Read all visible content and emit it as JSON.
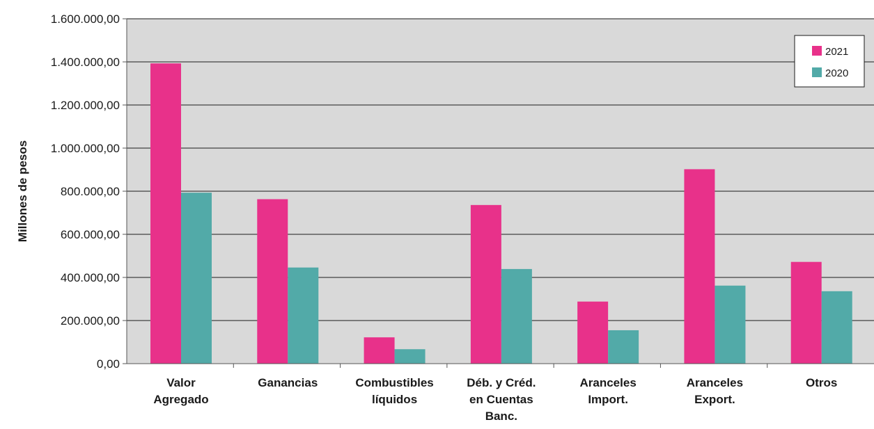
{
  "chart_data": {
    "type": "bar",
    "title": "",
    "xlabel": "",
    "ylabel": "Millones de pesos",
    "ylim": [
      0,
      1600000
    ],
    "yticks": [
      0,
      200000,
      400000,
      600000,
      800000,
      1000000,
      1200000,
      1400000,
      1600000
    ],
    "ytick_labels": [
      "0,00",
      "200.000,00",
      "400.000,00",
      "600.000,00",
      "800.000,00",
      "1.000.000,00",
      "1.200.000,00",
      "1.400.000,00",
      "1.600.000,00"
    ],
    "categories": [
      [
        "Valor",
        "Agregado"
      ],
      [
        "Ganancias"
      ],
      [
        "Combustibles",
        "líquidos"
      ],
      [
        "Déb. y Créd.",
        "en Cuentas",
        "Banc."
      ],
      [
        "Aranceles",
        "Import."
      ],
      [
        "Aranceles",
        "Export."
      ],
      [
        "Otros"
      ]
    ],
    "series": [
      {
        "name": "2021",
        "color": "#e8318a",
        "values": [
          1393000,
          763000,
          122000,
          736000,
          288000,
          902000,
          472000
        ]
      },
      {
        "name": "2020",
        "color": "#52aaa8",
        "values": [
          793000,
          446000,
          67000,
          439000,
          155000,
          362000,
          336000
        ]
      }
    ],
    "grid": true,
    "plot_background": "#d9d9d9",
    "legend_position": "top-right"
  }
}
